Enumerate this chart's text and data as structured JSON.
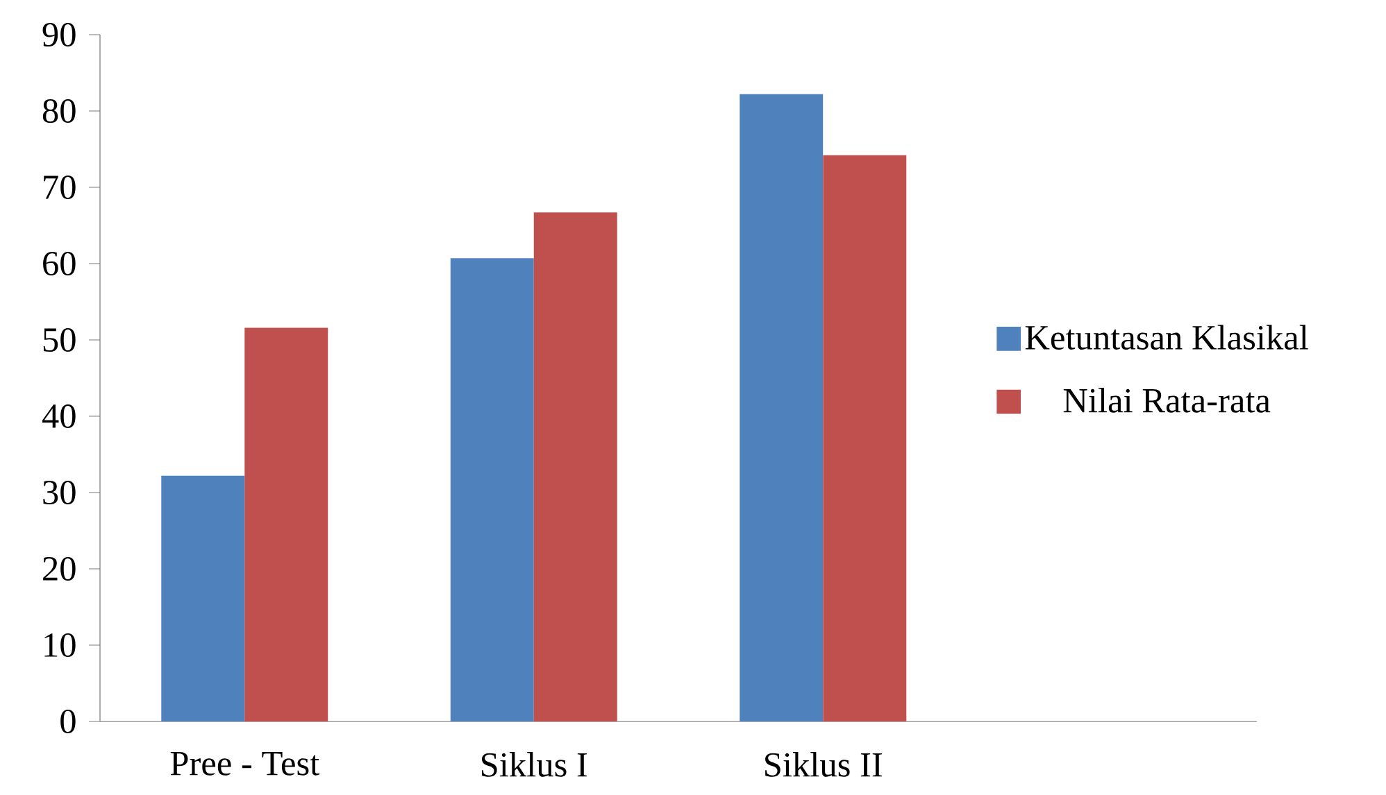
{
  "chart_data": {
    "type": "bar",
    "categories": [
      "Pree - Test",
      "Siklus I",
      "Siklus II",
      null
    ],
    "series": [
      {
        "name": "Ketuntasan Klasikal",
        "color": "#4f81bd",
        "values": [
          32.2,
          60.7,
          82.2,
          null
        ]
      },
      {
        "name": "Nilai Rata-rata",
        "color": "#c0504d",
        "values": [
          51.6,
          66.7,
          74.2,
          null
        ]
      }
    ],
    "ylim": [
      0,
      90
    ],
    "yticks": [
      0,
      10,
      20,
      30,
      40,
      50,
      60,
      70,
      80,
      90
    ],
    "grid": false,
    "legend": "right"
  }
}
